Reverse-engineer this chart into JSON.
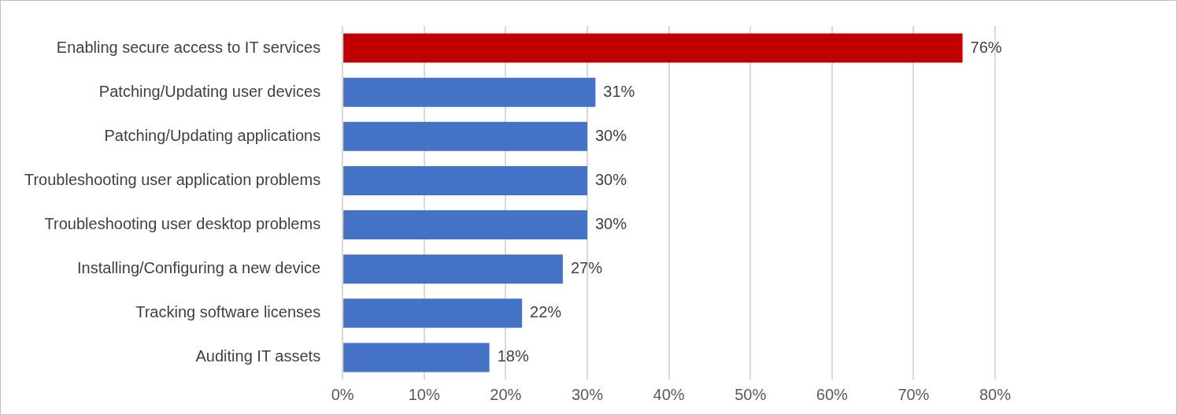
{
  "chart_data": {
    "type": "bar",
    "orientation": "horizontal",
    "categories": [
      "Enabling secure access to IT services",
      "Patching/Updating user devices",
      "Patching/Updating applications",
      "Troubleshooting user application problems",
      "Troubleshooting user desktop problems",
      "Installing/Configuring a new device",
      "Tracking software licenses",
      "Auditing IT assets"
    ],
    "values": [
      76,
      31,
      30,
      30,
      30,
      27,
      22,
      18
    ],
    "value_labels": [
      "76%",
      "31%",
      "30%",
      "30%",
      "30%",
      "27%",
      "22%",
      "18%"
    ],
    "colors": [
      "#c00000",
      "#4472c4",
      "#4472c4",
      "#4472c4",
      "#4472c4",
      "#4472c4",
      "#4472c4",
      "#4472c4"
    ],
    "xlim": [
      0,
      80
    ],
    "xticks": [
      {
        "value": 0,
        "label": "0%"
      },
      {
        "value": 10,
        "label": "10%"
      },
      {
        "value": 20,
        "label": "20%"
      },
      {
        "value": 30,
        "label": "30%"
      },
      {
        "value": 40,
        "label": "40%"
      },
      {
        "value": 50,
        "label": "50%"
      },
      {
        "value": 60,
        "label": "60%"
      },
      {
        "value": 70,
        "label": "70%"
      },
      {
        "value": 80,
        "label": "80%"
      }
    ],
    "grid": "x",
    "legend": false
  }
}
